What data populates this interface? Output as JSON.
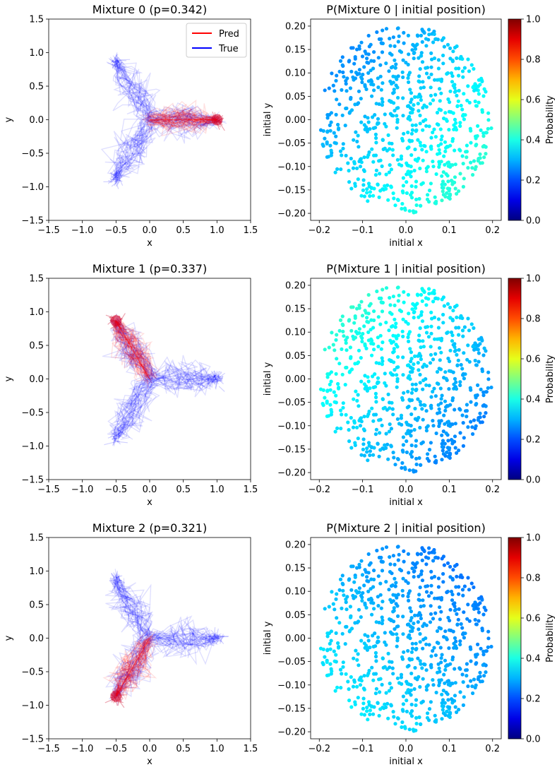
{
  "chart_data": [
    {
      "type": "line",
      "title": "Mixture 0 (p=0.342)",
      "xlabel": "x",
      "ylabel": "y",
      "xlim": [
        -1.5,
        1.5
      ],
      "ylim": [
        -1.5,
        1.5
      ],
      "xticks": [
        "−1.5",
        "−1.0",
        "−0.5",
        "0.0",
        "0.5",
        "1.0",
        "1.5"
      ],
      "yticks": [
        "−1.5",
        "−1.0",
        "−0.5",
        "0.0",
        "0.5",
        "1.0",
        "1.5"
      ],
      "legend": {
        "placement": "top-right",
        "entries": [
          "Pred",
          "True"
        ]
      },
      "series": [
        {
          "name": "Pred",
          "color": "#ff0000",
          "start": [
            0,
            0
          ],
          "end": [
            1.0,
            0.0
          ]
        },
        {
          "name": "True",
          "color": "#0000ff",
          "start": [
            0,
            0
          ],
          "ends": [
            [
              1.0,
              0.0
            ],
            [
              -0.5,
              0.866
            ],
            [
              -0.5,
              -0.866
            ]
          ]
        }
      ]
    },
    {
      "type": "scatter",
      "title": "P(Mixture 0 | initial position)",
      "xlabel": "initial x",
      "ylabel": "initial y",
      "xlim": [
        -0.22,
        0.22
      ],
      "ylim": [
        -0.215,
        0.215
      ],
      "xticks": [
        "−0.2",
        "−0.1",
        "0.0",
        "0.1",
        "0.2"
      ],
      "yticks": [
        "−0.20",
        "−0.15",
        "−0.10",
        "−0.05",
        "0.00",
        "0.05",
        "0.10",
        "0.15",
        "0.20"
      ],
      "points_region": "disk of radius 0.2 centered at origin",
      "probability_range": [
        0.26,
        0.42
      ],
      "gradient": "higher toward bottom-right",
      "colorbar": {
        "label": "Probability",
        "ticks": [
          "0.0",
          "0.2",
          "0.4",
          "0.6",
          "0.8",
          "1.0"
        ]
      }
    },
    {
      "type": "line",
      "title": "Mixture 1 (p=0.337)",
      "xlabel": "x",
      "ylabel": "y",
      "xlim": [
        -1.5,
        1.5
      ],
      "ylim": [
        -1.5,
        1.5
      ],
      "xticks": [
        "−1.5",
        "−1.0",
        "−0.5",
        "0.0",
        "0.5",
        "1.0",
        "1.5"
      ],
      "yticks": [
        "−1.5",
        "−1.0",
        "−0.5",
        "0.0",
        "0.5",
        "1.0",
        "1.5"
      ],
      "series": [
        {
          "name": "Pred",
          "color": "#ff0000",
          "start": [
            0,
            0
          ],
          "end": [
            -0.5,
            0.866
          ]
        },
        {
          "name": "True",
          "color": "#0000ff",
          "start": [
            0,
            0
          ],
          "ends": [
            [
              1.0,
              0.0
            ],
            [
              -0.5,
              0.866
            ],
            [
              -0.5,
              -0.866
            ]
          ]
        }
      ]
    },
    {
      "type": "scatter",
      "title": "P(Mixture 1 | initial position)",
      "xlabel": "initial x",
      "ylabel": "initial y",
      "xlim": [
        -0.22,
        0.22
      ],
      "ylim": [
        -0.215,
        0.215
      ],
      "xticks": [
        "−0.2",
        "−0.1",
        "0.0",
        "0.1",
        "0.2"
      ],
      "yticks": [
        "−0.20",
        "−0.15",
        "−0.10",
        "−0.05",
        "0.00",
        "0.05",
        "0.10",
        "0.15",
        "0.20"
      ],
      "points_region": "disk of radius 0.2 centered at origin",
      "probability_range": [
        0.25,
        0.42
      ],
      "gradient": "higher toward top-left",
      "colorbar": {
        "label": "Probability",
        "ticks": [
          "0.0",
          "0.2",
          "0.4",
          "0.6",
          "0.8",
          "1.0"
        ]
      }
    },
    {
      "type": "line",
      "title": "Mixture 2 (p=0.321)",
      "xlabel": "x",
      "ylabel": "y",
      "xlim": [
        -1.5,
        1.5
      ],
      "ylim": [
        -1.5,
        1.5
      ],
      "xticks": [
        "−1.5",
        "−1.0",
        "−0.5",
        "0.0",
        "0.5",
        "1.0",
        "1.5"
      ],
      "yticks": [
        "−1.5",
        "−1.0",
        "−0.5",
        "0.0",
        "0.5",
        "1.0",
        "1.5"
      ],
      "series": [
        {
          "name": "Pred",
          "color": "#ff0000",
          "start": [
            0,
            0
          ],
          "end": [
            -0.5,
            -0.866
          ]
        },
        {
          "name": "True",
          "color": "#0000ff",
          "start": [
            0,
            0
          ],
          "ends": [
            [
              1.0,
              0.0
            ],
            [
              -0.5,
              0.866
            ],
            [
              -0.5,
              -0.866
            ]
          ]
        }
      ]
    },
    {
      "type": "scatter",
      "title": "P(Mixture 2 | initial position)",
      "xlabel": "initial x",
      "ylabel": "initial y",
      "xlim": [
        -0.22,
        0.22
      ],
      "ylim": [
        -0.215,
        0.215
      ],
      "xticks": [
        "−0.2",
        "−0.1",
        "0.0",
        "0.1",
        "0.2"
      ],
      "yticks": [
        "−0.20",
        "−0.15",
        "−0.10",
        "−0.05",
        "0.00",
        "0.05",
        "0.10",
        "0.15",
        "0.20"
      ],
      "points_region": "disk of radius 0.2 centered at origin",
      "probability_range": [
        0.24,
        0.36
      ],
      "gradient": "higher toward bottom-left",
      "colorbar": {
        "label": "Probability",
        "ticks": [
          "0.0",
          "0.2",
          "0.4",
          "0.6",
          "0.8",
          "1.0"
        ]
      }
    }
  ],
  "colors": {
    "pred": "#ff0000",
    "true": "#0000ff"
  },
  "colormap": "jet"
}
